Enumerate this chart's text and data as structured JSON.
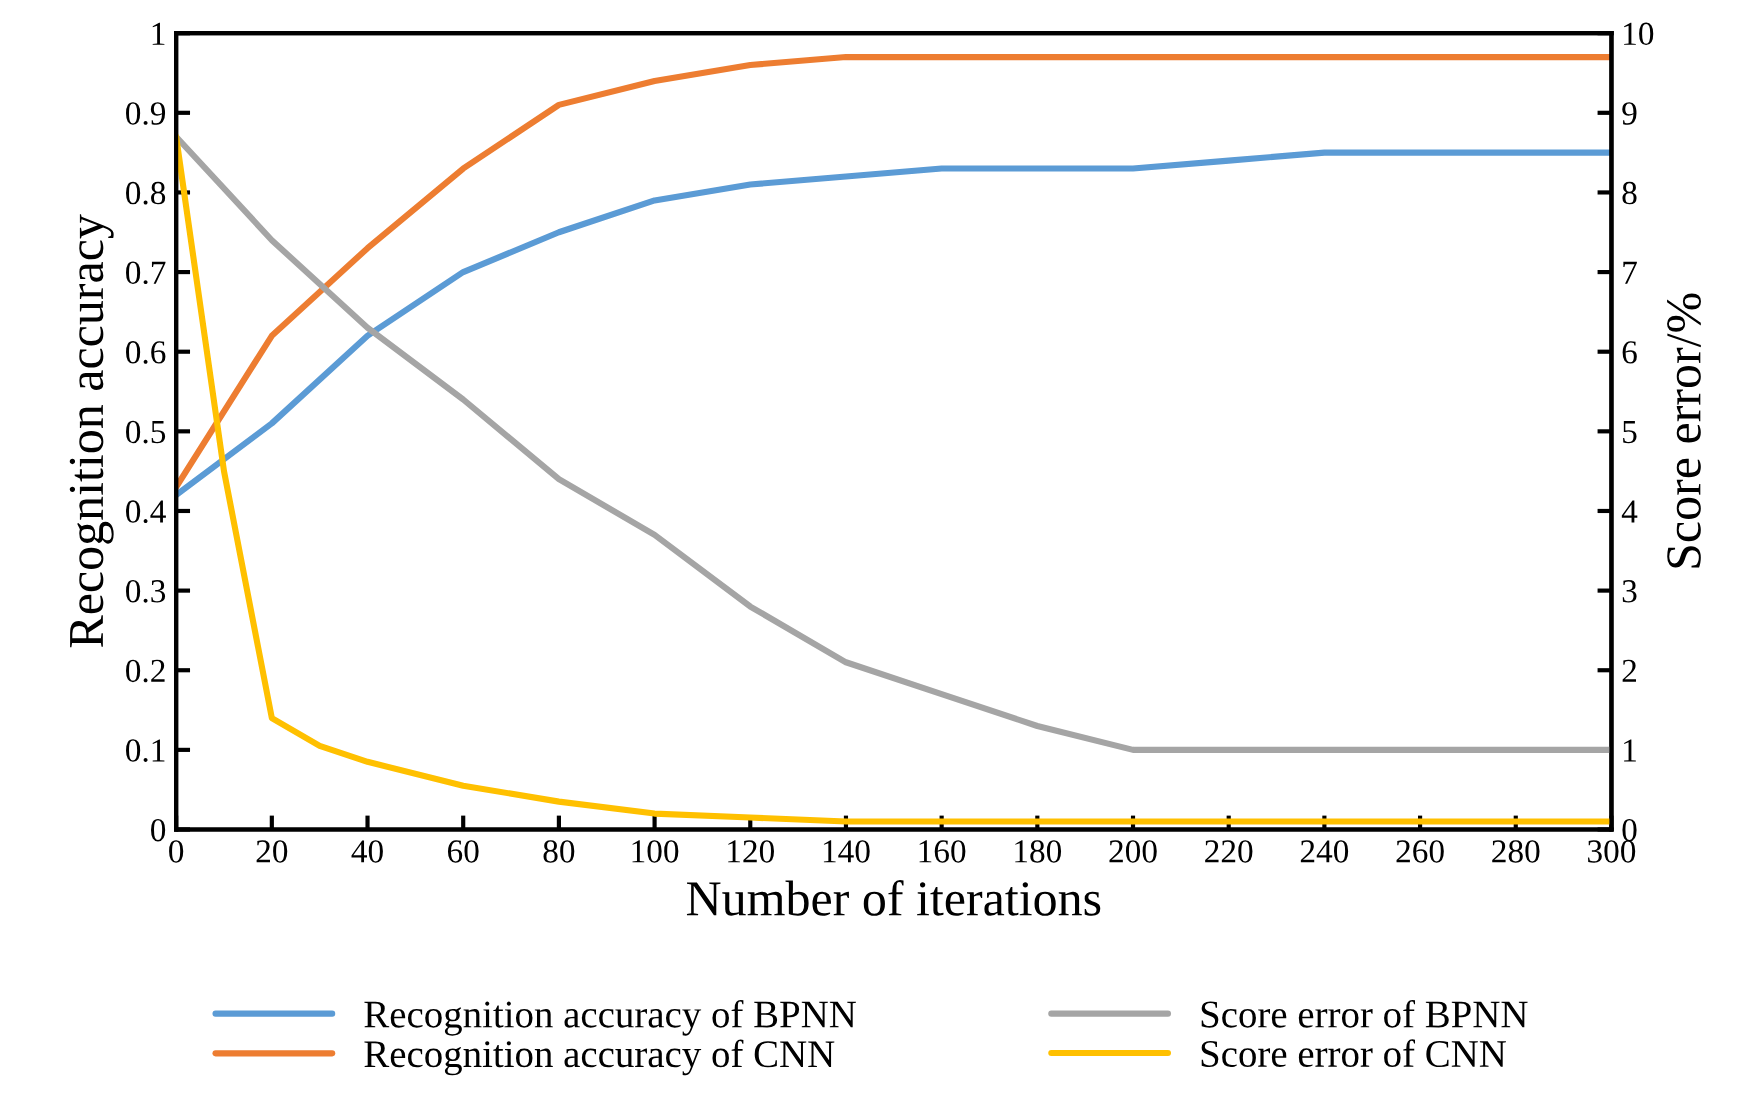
{
  "chart_data": {
    "type": "line",
    "xlabel": "Number of iterations",
    "ylabel": "Recognition accuracy",
    "y2label": "Score error/%",
    "x": [
      0,
      20,
      40,
      60,
      80,
      100,
      120,
      140,
      160,
      180,
      200,
      220,
      240,
      260,
      280,
      300
    ],
    "series": [
      {
        "name": "Recognition accuracy of BPNN",
        "color": "#5b9bd5",
        "values": [
          0.42,
          0.51,
          0.62,
          0.7,
          0.75,
          0.79,
          0.81,
          0.82,
          0.83,
          0.83,
          0.83,
          0.84,
          0.85,
          0.85,
          0.85,
          0.85
        ]
      },
      {
        "name": "Recognition accuracy of CNN",
        "color": "#ed7d31",
        "values": [
          0.43,
          0.62,
          0.73,
          0.83,
          0.91,
          0.94,
          0.96,
          0.97,
          0.97,
          0.97,
          0.97,
          0.97,
          0.97,
          0.97,
          0.97,
          0.97
        ]
      },
      {
        "name": "Score error of BPNN",
        "color": "#a5a5a5",
        "axis": "y2",
        "values": [
          8.7,
          7.4,
          6.3,
          5.4,
          4.4,
          3.7,
          2.8,
          2.1,
          1.7,
          1.3,
          1.0,
          1.0,
          1.0,
          1.0,
          1.0,
          1.0
        ]
      },
      {
        "name": "Score error of CNN",
        "color": "#ffc000",
        "axis": "y2",
        "x": [
          0,
          10,
          20,
          30,
          40,
          60,
          80,
          100,
          120,
          140,
          160,
          180,
          200,
          220,
          240,
          260,
          280,
          300
        ],
        "values": [
          8.7,
          4.5,
          1.4,
          1.05,
          0.85,
          0.55,
          0.35,
          0.2,
          0.15,
          0.1,
          0.1,
          0.1,
          0.1,
          0.1,
          0.1,
          0.1,
          0.1,
          0.1
        ]
      }
    ],
    "xlim": [
      0,
      300
    ],
    "xticks": [
      0,
      20,
      40,
      60,
      80,
      100,
      120,
      140,
      160,
      180,
      200,
      220,
      240,
      260,
      280,
      300
    ],
    "ylim": [
      0,
      1
    ],
    "yticks": [
      0,
      0.1,
      0.2,
      0.3,
      0.4,
      0.5,
      0.6,
      0.7,
      0.8,
      0.9,
      1
    ],
    "y2lim": [
      0,
      10
    ],
    "y2ticks": [
      0,
      1,
      2,
      3,
      4,
      5,
      6,
      7,
      8,
      9,
      10
    ],
    "legend": "bottom",
    "grid": false,
    "marker": "none",
    "line_style": "solid"
  }
}
